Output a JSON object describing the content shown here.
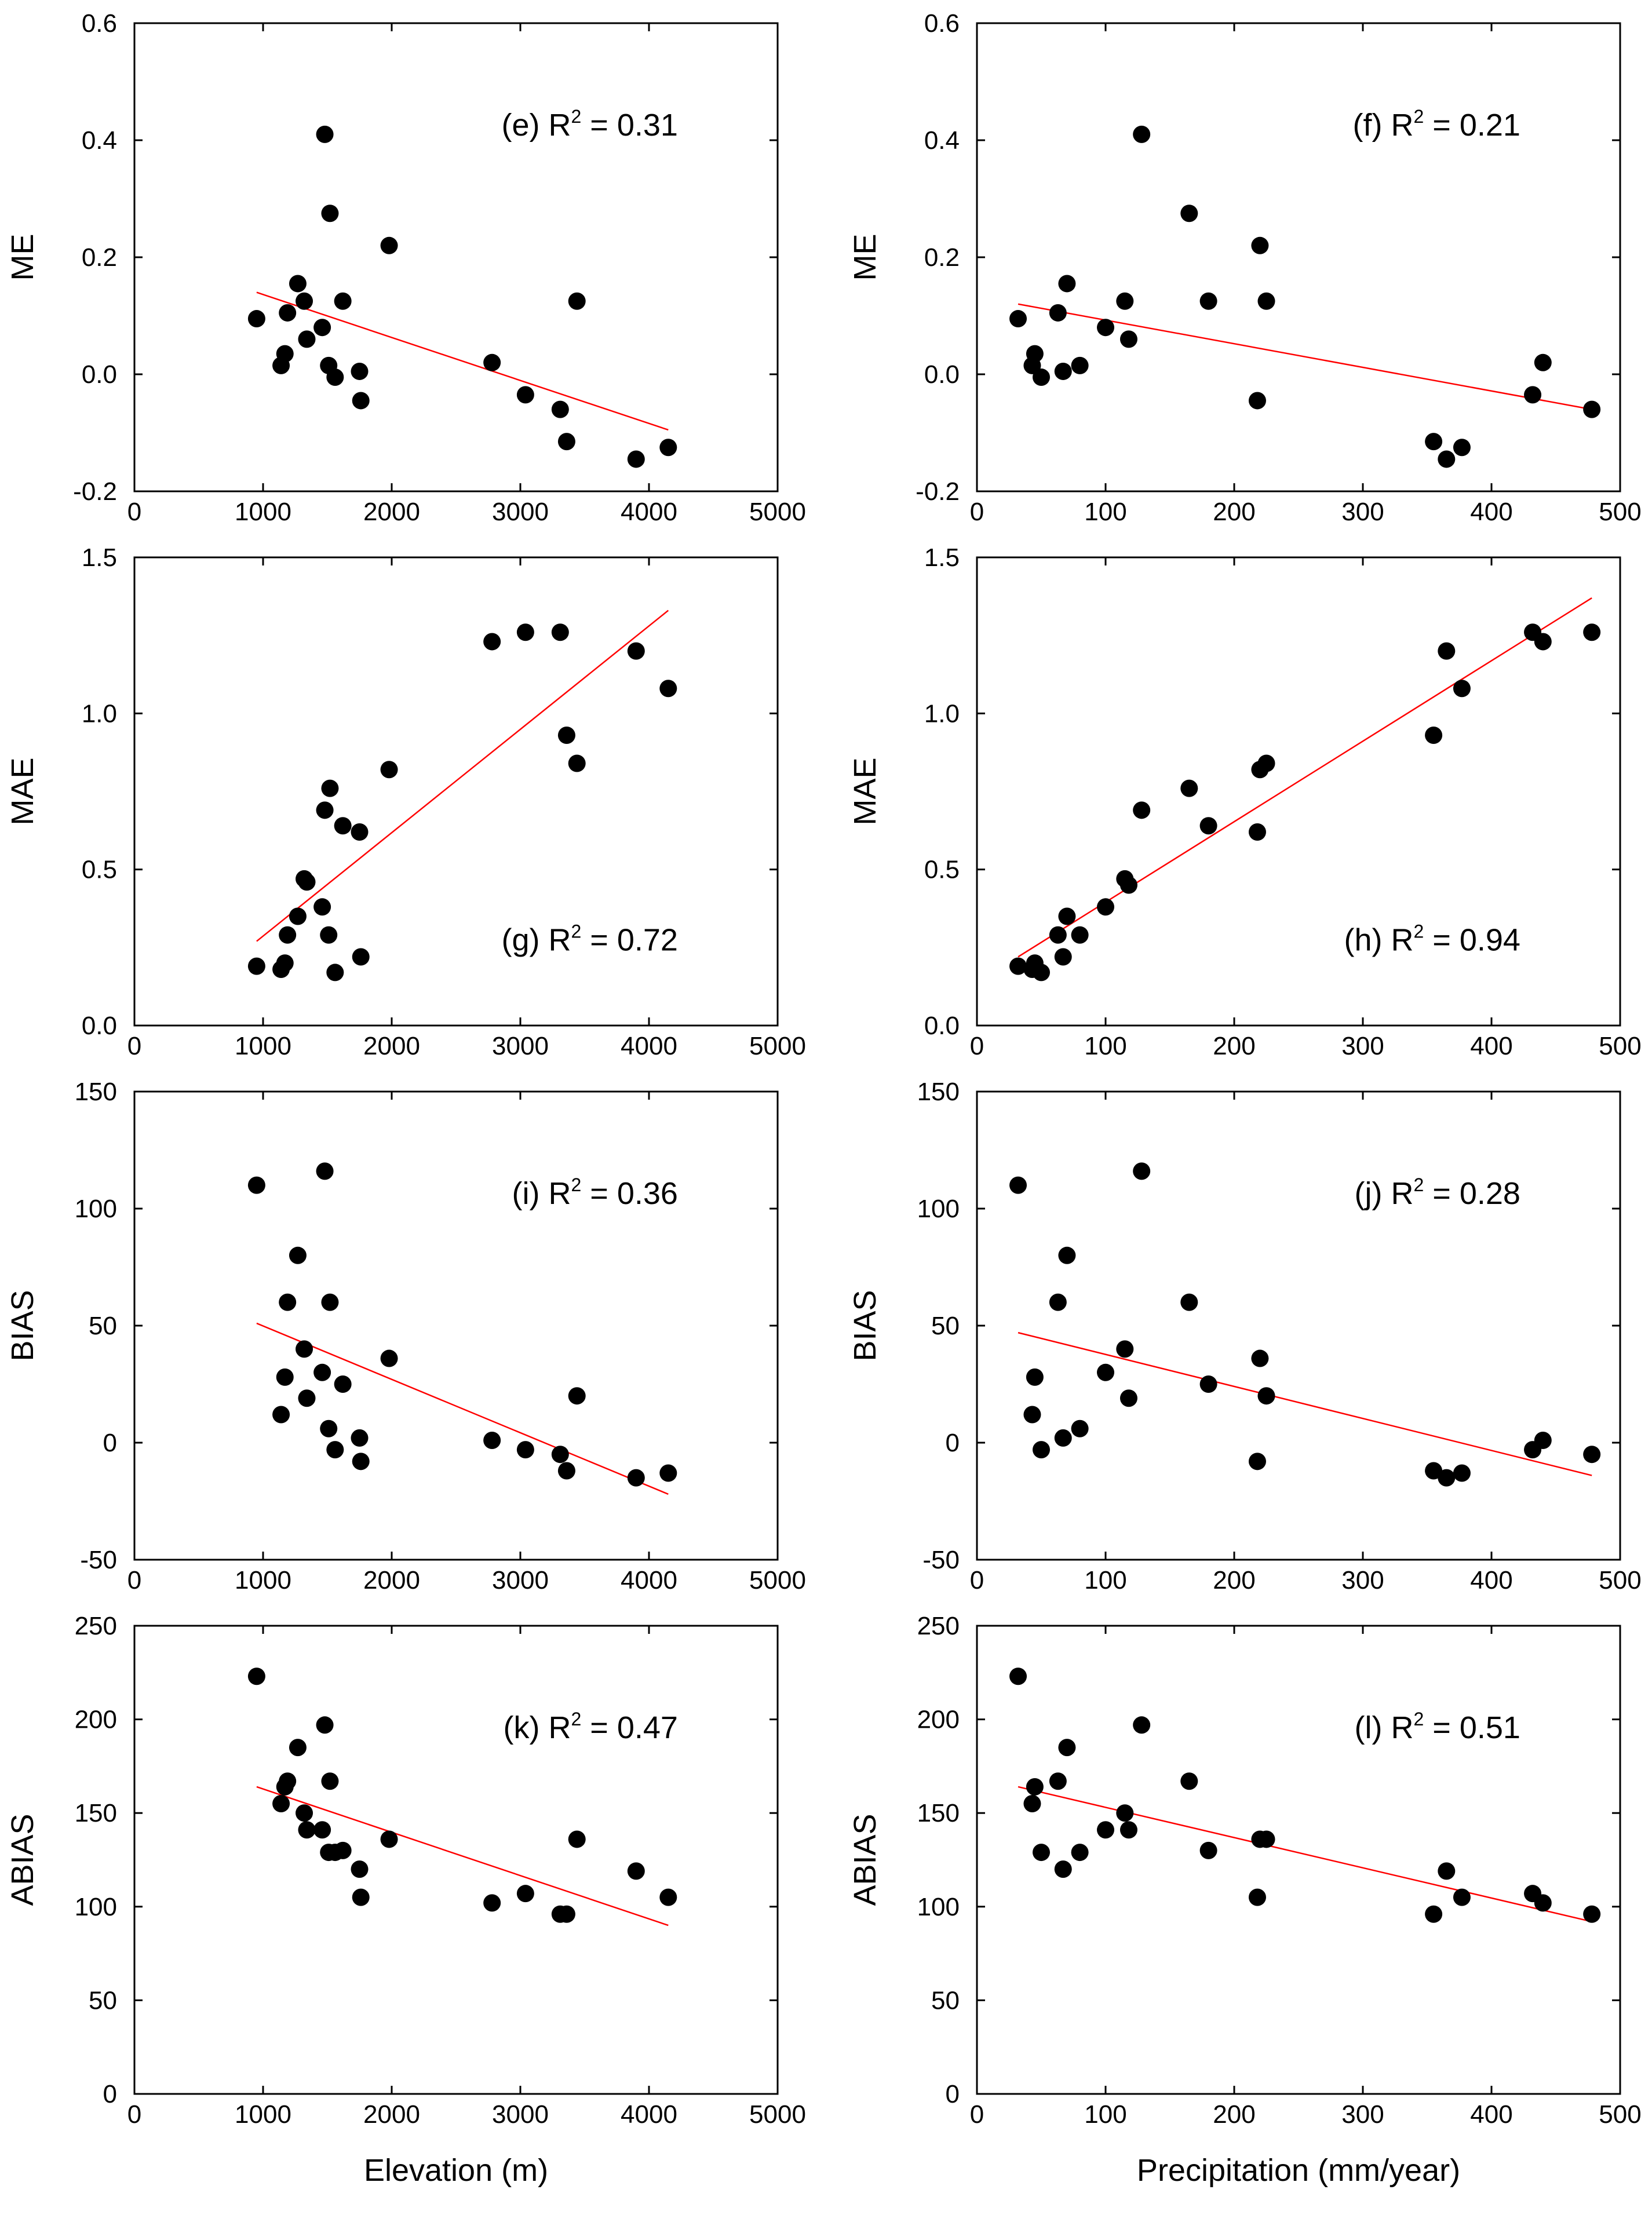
{
  "x_axis_labels": {
    "left": "Elevation (m)",
    "right": "Precipitation (mm/year)"
  },
  "colors": {
    "points": "#000000",
    "fit_line": "#ff0000",
    "frame": "#000000"
  },
  "chart_data": [
    {
      "id": "e",
      "type": "scatter",
      "panel_label": "(e) R",
      "r2": " = 0.31",
      "xlabel": "",
      "ylabel": "ME",
      "xlim": [
        0,
        5000
      ],
      "ylim": [
        -0.2,
        0.6
      ],
      "xticks": [
        "0",
        "1000",
        "2000",
        "3000",
        "4000",
        "5000"
      ],
      "yticks": [
        "-0.2",
        "0.0",
        "0.2",
        "0.4",
        "0.6"
      ],
      "x": [
        950,
        1140,
        1170,
        1190,
        1270,
        1320,
        1340,
        1460,
        1480,
        1510,
        1520,
        1560,
        1620,
        1750,
        1760,
        1980,
        2780,
        3040,
        3310,
        3360,
        3440,
        3900,
        4150
      ],
      "y": [
        0.095,
        0.015,
        0.035,
        0.105,
        0.155,
        0.125,
        0.06,
        0.08,
        0.41,
        0.015,
        0.275,
        -0.005,
        0.125,
        0.005,
        -0.045,
        0.22,
        0.02,
        -0.035,
        -0.06,
        -0.115,
        0.125,
        -0.145,
        -0.125
      ],
      "fit": {
        "x": [
          950,
          4150
        ],
        "y": [
          0.14,
          -0.095
        ]
      }
    },
    {
      "id": "f",
      "type": "scatter",
      "panel_label": "(f) R",
      "r2": " = 0.21",
      "xlabel": "",
      "ylabel": "ME",
      "xlim": [
        0,
        500
      ],
      "ylim": [
        -0.2,
        0.6
      ],
      "xticks": [
        "0",
        "100",
        "200",
        "300",
        "400",
        "500"
      ],
      "yticks": [
        "-0.2",
        "0.0",
        "0.2",
        "0.4",
        "0.6"
      ],
      "x": [
        32,
        43,
        45,
        50,
        63,
        67,
        70,
        80,
        100,
        115,
        118,
        128,
        165,
        180,
        218,
        220,
        225,
        355,
        365,
        377,
        432,
        440,
        478
      ],
      "y": [
        0.095,
        0.015,
        0.035,
        -0.005,
        0.105,
        0.005,
        0.155,
        0.015,
        0.08,
        0.125,
        0.06,
        0.41,
        0.275,
        0.125,
        -0.045,
        0.22,
        0.125,
        -0.115,
        -0.145,
        -0.125,
        -0.035,
        0.02,
        -0.06
      ],
      "fit": {
        "x": [
          32,
          478
        ],
        "y": [
          0.12,
          -0.06
        ]
      }
    },
    {
      "id": "g",
      "type": "scatter",
      "panel_label": "(g) R",
      "r2": " = 0.72",
      "xlabel": "",
      "ylabel": "MAE",
      "xlim": [
        0,
        5000
      ],
      "ylim": [
        0.0,
        1.5
      ],
      "xticks": [
        "0",
        "1000",
        "2000",
        "3000",
        "4000",
        "5000"
      ],
      "yticks": [
        "0.0",
        "0.5",
        "1.0",
        "1.5"
      ],
      "x": [
        950,
        1140,
        1170,
        1190,
        1270,
        1320,
        1340,
        1460,
        1480,
        1510,
        1520,
        1560,
        1620,
        1750,
        1760,
        1980,
        2780,
        3040,
        3310,
        3360,
        3440,
        3900,
        4150
      ],
      "y": [
        0.19,
        0.18,
        0.2,
        0.29,
        0.35,
        0.47,
        0.46,
        0.38,
        0.69,
        0.29,
        0.76,
        0.17,
        0.64,
        0.62,
        0.22,
        0.82,
        1.23,
        1.26,
        1.26,
        0.93,
        0.84,
        1.2,
        1.08
      ],
      "fit": {
        "x": [
          950,
          4150
        ],
        "y": [
          0.27,
          1.33
        ]
      }
    },
    {
      "id": "h",
      "type": "scatter",
      "panel_label": "(h) R",
      "r2": " = 0.94",
      "xlabel": "",
      "ylabel": "MAE",
      "xlim": [
        0,
        500
      ],
      "ylim": [
        0.0,
        1.5
      ],
      "xticks": [
        "0",
        "100",
        "200",
        "300",
        "400",
        "500"
      ],
      "yticks": [
        "0.0",
        "0.5",
        "1.0",
        "1.5"
      ],
      "x": [
        32,
        43,
        45,
        50,
        63,
        67,
        70,
        80,
        100,
        115,
        118,
        128,
        165,
        180,
        218,
        220,
        225,
        355,
        365,
        377,
        432,
        440,
        478
      ],
      "y": [
        0.19,
        0.18,
        0.2,
        0.17,
        0.29,
        0.22,
        0.35,
        0.29,
        0.38,
        0.47,
        0.45,
        0.69,
        0.76,
        0.64,
        0.62,
        0.82,
        0.84,
        0.93,
        1.2,
        1.08,
        1.26,
        1.23,
        1.26
      ],
      "fit": {
        "x": [
          32,
          478
        ],
        "y": [
          0.22,
          1.37
        ]
      }
    },
    {
      "id": "i",
      "type": "scatter",
      "panel_label": "(i) R",
      "r2": " = 0.36",
      "xlabel": "",
      "ylabel": "BIAS",
      "xlim": [
        0,
        5000
      ],
      "ylim": [
        -50,
        150
      ],
      "xticks": [
        "0",
        "1000",
        "2000",
        "3000",
        "4000",
        "5000"
      ],
      "yticks": [
        "-50",
        "0",
        "50",
        "100",
        "150"
      ],
      "x": [
        950,
        1140,
        1170,
        1190,
        1270,
        1320,
        1340,
        1460,
        1480,
        1510,
        1520,
        1560,
        1620,
        1750,
        1760,
        1980,
        2780,
        3040,
        3310,
        3360,
        3440,
        3900,
        4150
      ],
      "y": [
        110,
        12,
        28,
        60,
        80,
        40,
        19,
        30,
        116,
        6,
        60,
        -3,
        25,
        2,
        -8,
        36,
        1,
        -3,
        -5,
        -12,
        20,
        -15,
        -13
      ],
      "fit": {
        "x": [
          950,
          4150
        ],
        "y": [
          51,
          -22
        ]
      }
    },
    {
      "id": "j",
      "type": "scatter",
      "panel_label": "(j) R",
      "r2": " = 0.28",
      "xlabel": "",
      "ylabel": "BIAS",
      "xlim": [
        0,
        500
      ],
      "ylim": [
        -50,
        150
      ],
      "xticks": [
        "0",
        "100",
        "200",
        "300",
        "400",
        "500"
      ],
      "yticks": [
        "-50",
        "0",
        "50",
        "100",
        "150"
      ],
      "x": [
        32,
        43,
        45,
        50,
        63,
        67,
        70,
        80,
        100,
        115,
        118,
        128,
        165,
        180,
        218,
        220,
        225,
        355,
        365,
        377,
        432,
        440,
        478
      ],
      "y": [
        110,
        12,
        28,
        -3,
        60,
        2,
        80,
        6,
        30,
        40,
        19,
        116,
        60,
        25,
        -8,
        36,
        20,
        -12,
        -15,
        -13,
        -3,
        1,
        -5
      ],
      "fit": {
        "x": [
          32,
          478
        ],
        "y": [
          47,
          -14
        ]
      }
    },
    {
      "id": "k",
      "type": "scatter",
      "panel_label": "(k) R",
      "r2": " = 0.47",
      "xlabel": "Elevation (m)",
      "ylabel": "ABIAS",
      "xlim": [
        0,
        5000
      ],
      "ylim": [
        0,
        250
      ],
      "xticks": [
        "0",
        "1000",
        "2000",
        "3000",
        "4000",
        "5000"
      ],
      "yticks": [
        "0",
        "50",
        "100",
        "150",
        "200",
        "250"
      ],
      "x": [
        950,
        1140,
        1170,
        1190,
        1270,
        1320,
        1340,
        1460,
        1480,
        1510,
        1520,
        1560,
        1620,
        1750,
        1760,
        1980,
        2780,
        3040,
        3310,
        3360,
        3440,
        3900,
        4150
      ],
      "y": [
        223,
        155,
        164,
        167,
        185,
        150,
        141,
        141,
        197,
        129,
        167,
        129,
        130,
        120,
        105,
        136,
        102,
        107,
        96,
        96,
        136,
        119,
        105
      ],
      "fit": {
        "x": [
          950,
          4150
        ],
        "y": [
          164,
          90
        ]
      }
    },
    {
      "id": "l",
      "type": "scatter",
      "panel_label": "(l) R",
      "r2": " = 0.51",
      "xlabel": "Precipitation (mm/year)",
      "ylabel": "ABIAS",
      "xlim": [
        0,
        500
      ],
      "ylim": [
        0,
        250
      ],
      "xticks": [
        "0",
        "100",
        "200",
        "300",
        "400",
        "500"
      ],
      "yticks": [
        "0",
        "50",
        "100",
        "150",
        "200",
        "250"
      ],
      "x": [
        32,
        43,
        45,
        50,
        63,
        67,
        70,
        80,
        100,
        115,
        118,
        128,
        165,
        180,
        218,
        220,
        225,
        355,
        365,
        377,
        432,
        440,
        478
      ],
      "y": [
        223,
        155,
        164,
        129,
        167,
        120,
        185,
        129,
        141,
        150,
        141,
        197,
        167,
        130,
        105,
        136,
        136,
        96,
        119,
        105,
        107,
        102,
        96
      ],
      "fit": {
        "x": [
          32,
          478
        ],
        "y": [
          164,
          92
        ]
      }
    }
  ]
}
